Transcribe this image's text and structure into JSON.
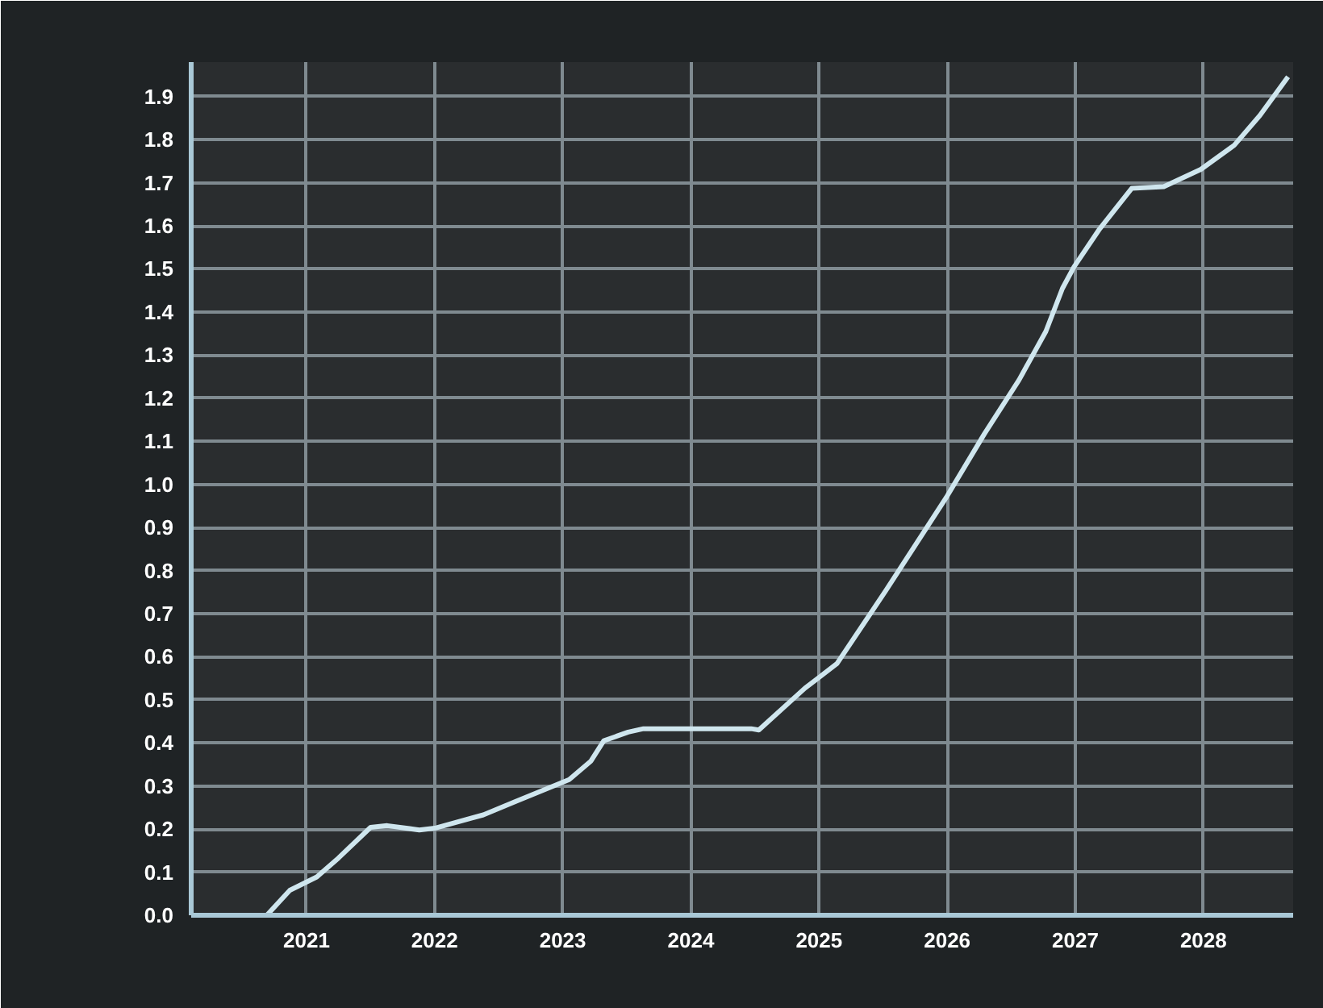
{
  "chart_data": {
    "type": "line",
    "x": [
      2020.1,
      2020.69,
      2020.87,
      2021.08,
      2021.25,
      2021.5,
      2021.63,
      2021.88,
      2022.0,
      2022.38,
      2022.63,
      2023.05,
      2023.22,
      2023.32,
      2023.51,
      2023.63,
      2024.47,
      2024.53,
      2024.89,
      2025.14,
      2025.52,
      2026.0,
      2026.29,
      2026.56,
      2026.77,
      2026.9,
      2026.99,
      2027.19,
      2027.44,
      2027.69,
      2027.98,
      2028.24,
      2028.44,
      2028.66
    ],
    "series": [
      {
        "color": "#cfe6ee",
        "values": [
          0,
          0,
          0.058,
          0.089,
          0.133,
          0.204,
          0.208,
          0.198,
          0.202,
          0.233,
          0.264,
          0.315,
          0.358,
          0.405,
          0.425,
          0.433,
          0.433,
          0.43,
          0.527,
          0.584,
          0.753,
          0.973,
          1.117,
          1.242,
          1.355,
          1.455,
          1.505,
          1.593,
          1.687,
          1.691,
          1.731,
          1.787,
          1.856,
          1.946
        ]
      }
    ],
    "xlim": [
      2020.1,
      2028.7
    ],
    "xticks": [
      2021,
      2022,
      2023,
      2024,
      2025,
      2026,
      2027,
      2028
    ],
    "ylim": [
      0,
      1.98
    ],
    "yticks": [
      {
        "value": 0,
        "label": "0.0"
      },
      0.1,
      0.2,
      0.3,
      0.4,
      0.5,
      0.6,
      0.7,
      0.8,
      0.9,
      {
        "value": 1,
        "label": "1.0"
      },
      1.1,
      1.2,
      1.3,
      1.4,
      1.5,
      1.6,
      1.7,
      1.8,
      1.9
    ],
    "grid": true,
    "marker": "none",
    "line_style": "solid"
  }
}
